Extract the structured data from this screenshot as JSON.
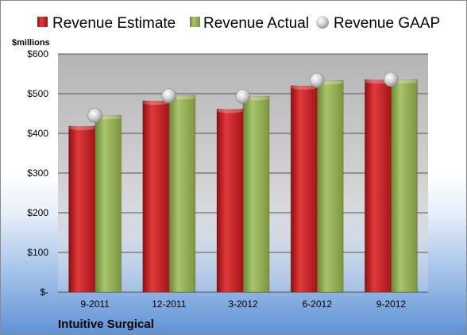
{
  "chart_data": {
    "type": "bar",
    "title": "",
    "xlabel": "",
    "ylabel": "$millions",
    "company": "Intuitive Surgical",
    "categories": [
      "9-2011",
      "12-2011",
      "3-2012",
      "6-2012",
      "9-2012"
    ],
    "series": [
      {
        "name": "Revenue Estimate",
        "kind": "bar",
        "color": "#c8161d",
        "values": [
          418,
          482,
          461,
          520,
          535
        ]
      },
      {
        "name": "Revenue Actual",
        "kind": "bar",
        "color": "#8faa4a",
        "values": [
          445,
          495,
          493,
          533,
          535
        ]
      },
      {
        "name": "Revenue GAAP",
        "kind": "marker",
        "color": "#b8b8b8",
        "values": [
          445,
          495,
          493,
          534,
          536
        ]
      }
    ],
    "ylim": [
      0,
      600
    ],
    "yticks": [
      0,
      100,
      200,
      300,
      400,
      500,
      600
    ],
    "ytick_labels": [
      "$-",
      "$100",
      "$200",
      "$300",
      "$400",
      "$500",
      "$600"
    ],
    "grid": true,
    "legend_position": "top"
  }
}
